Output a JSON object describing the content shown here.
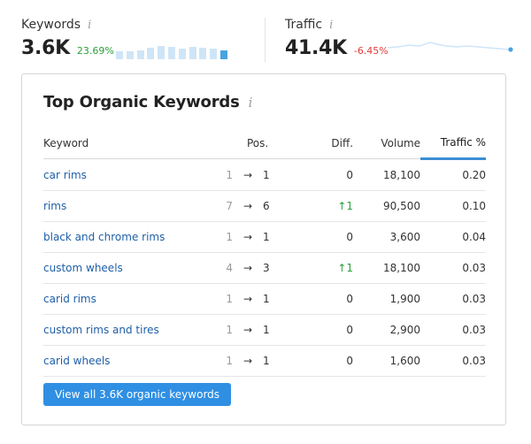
{
  "metrics": {
    "keywords": {
      "label": "Keywords",
      "info_icon": "i",
      "value": "3.6K",
      "change": "23.69%",
      "trend_bars": [
        0.55,
        0.55,
        0.62,
        0.8,
        0.92,
        0.88,
        0.75,
        0.88,
        0.82,
        0.72,
        0.62
      ]
    },
    "traffic": {
      "label": "Traffic",
      "info_icon": "i",
      "value": "41.4K",
      "change": "-6.45%"
    }
  },
  "card": {
    "title": "Top Organic Keywords",
    "info_icon": "i",
    "columns": {
      "keyword": "Keyword",
      "pos": "Pos.",
      "diff": "Diff.",
      "volume": "Volume",
      "traffic": "Traffic %"
    },
    "rows": [
      {
        "keyword": "car rims",
        "prev": "1",
        "arrow": "→",
        "pos": "1",
        "diff": "0",
        "up": false,
        "volume": "18,100",
        "traffic": "0.20"
      },
      {
        "keyword": "rims",
        "prev": "7",
        "arrow": "→",
        "pos": "6",
        "diff": "↑1",
        "up": true,
        "volume": "90,500",
        "traffic": "0.10"
      },
      {
        "keyword": "black and chrome rims",
        "prev": "1",
        "arrow": "→",
        "pos": "1",
        "diff": "0",
        "up": false,
        "volume": "3,600",
        "traffic": "0.04"
      },
      {
        "keyword": "custom wheels",
        "prev": "4",
        "arrow": "→",
        "pos": "3",
        "diff": "↑1",
        "up": true,
        "volume": "18,100",
        "traffic": "0.03"
      },
      {
        "keyword": "carid rims",
        "prev": "1",
        "arrow": "→",
        "pos": "1",
        "diff": "0",
        "up": false,
        "volume": "1,900",
        "traffic": "0.03"
      },
      {
        "keyword": "custom rims and tires",
        "prev": "1",
        "arrow": "→",
        "pos": "1",
        "diff": "0",
        "up": false,
        "volume": "2,900",
        "traffic": "0.03"
      },
      {
        "keyword": "carid wheels",
        "prev": "1",
        "arrow": "→",
        "pos": "1",
        "diff": "0",
        "up": false,
        "volume": "1,600",
        "traffic": "0.03"
      }
    ],
    "button_label": "View all 3.6K organic keywords"
  },
  "colors": {
    "positive": "#2aa13c",
    "negative": "#e23c3c",
    "link": "#1e5fa8",
    "accent": "#2f8fe3"
  }
}
